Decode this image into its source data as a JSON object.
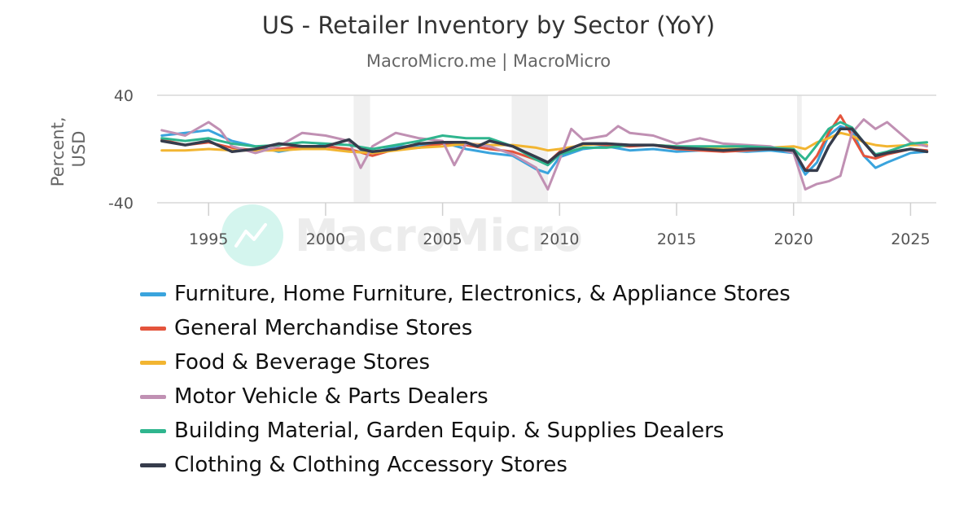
{
  "title": "US - Retailer Inventory by Sector (YoY)",
  "subtitle": "MacroMicro.me | MacroMicro",
  "watermark": "MacroMicro",
  "chart_data": {
    "type": "line",
    "title": "US - Retailer Inventory by Sector (YoY)",
    "ylabel": "Percent, USD",
    "ylim": [
      -40,
      40
    ],
    "yticks": [
      40,
      -40
    ],
    "xlim": [
      1992.8,
      2026.1
    ],
    "xticks": [
      1995,
      2000,
      2005,
      2010,
      2015,
      2020,
      2025
    ],
    "grid": "horizontal",
    "legend_position": "bottom",
    "recessions": [
      [
        2001.2,
        2001.9
      ],
      [
        2007.95,
        2009.5
      ],
      [
        2020.15,
        2020.35
      ]
    ],
    "series": [
      {
        "name": "Furniture, Home Furniture, Electronics, & Appliance Stores",
        "color": "#3aa4dd",
        "points": [
          [
            1993,
            10
          ],
          [
            1994,
            12
          ],
          [
            1995,
            14
          ],
          [
            1996,
            6
          ],
          [
            1997,
            2
          ],
          [
            1998,
            -2
          ],
          [
            1999,
            1
          ],
          [
            2000,
            3
          ],
          [
            2001,
            -1
          ],
          [
            2002,
            -3
          ],
          [
            2003,
            2
          ],
          [
            2004,
            2
          ],
          [
            2005,
            5
          ],
          [
            2006,
            0
          ],
          [
            2007,
            -3
          ],
          [
            2008,
            -5
          ],
          [
            2009,
            -15
          ],
          [
            2009.5,
            -18
          ],
          [
            2010,
            -6
          ],
          [
            2011,
            0
          ],
          [
            2012,
            2
          ],
          [
            2013,
            -1
          ],
          [
            2014,
            0
          ],
          [
            2015,
            -2
          ],
          [
            2016,
            -1
          ],
          [
            2017,
            -1
          ],
          [
            2018,
            -2
          ],
          [
            2019,
            -1
          ],
          [
            2020,
            -3
          ],
          [
            2020.5,
            -19
          ],
          [
            2021,
            -10
          ],
          [
            2021.5,
            10
          ],
          [
            2022,
            17
          ],
          [
            2022.5,
            14
          ],
          [
            2023,
            -5
          ],
          [
            2023.5,
            -14
          ],
          [
            2024,
            -10
          ],
          [
            2025,
            -3
          ],
          [
            2025.7,
            -2
          ]
        ]
      },
      {
        "name": "General Merchandise Stores",
        "color": "#e4543c",
        "points": [
          [
            1993,
            7
          ],
          [
            1994,
            3
          ],
          [
            1995,
            5
          ],
          [
            1996,
            1
          ],
          [
            1997,
            -1
          ],
          [
            1998,
            0
          ],
          [
            1999,
            2
          ],
          [
            2000,
            2
          ],
          [
            2001,
            0
          ],
          [
            2002,
            -5
          ],
          [
            2003,
            0
          ],
          [
            2004,
            1
          ],
          [
            2005,
            4
          ],
          [
            2006,
            3
          ],
          [
            2007,
            0
          ],
          [
            2008,
            -2
          ],
          [
            2009,
            -8
          ],
          [
            2009.5,
            -10
          ],
          [
            2010,
            -2
          ],
          [
            2011,
            4
          ],
          [
            2012,
            3
          ],
          [
            2013,
            2
          ],
          [
            2014,
            3
          ],
          [
            2015,
            0
          ],
          [
            2016,
            -1
          ],
          [
            2017,
            -2
          ],
          [
            2018,
            -1
          ],
          [
            2019,
            0
          ],
          [
            2020,
            -1
          ],
          [
            2020.5,
            -16
          ],
          [
            2021,
            -5
          ],
          [
            2021.5,
            12
          ],
          [
            2022,
            25
          ],
          [
            2022.5,
            10
          ],
          [
            2023,
            -5
          ],
          [
            2023.5,
            -7
          ],
          [
            2024,
            -4
          ],
          [
            2025,
            0
          ],
          [
            2025.7,
            -1
          ]
        ]
      },
      {
        "name": "Food & Beverage Stores",
        "color": "#f2b531",
        "points": [
          [
            1993,
            -1
          ],
          [
            1994,
            -1
          ],
          [
            1995,
            0
          ],
          [
            1996,
            -1
          ],
          [
            1997,
            -1
          ],
          [
            1998,
            -1
          ],
          [
            1999,
            0
          ],
          [
            2000,
            0
          ],
          [
            2001,
            -2
          ],
          [
            2002,
            -3
          ],
          [
            2003,
            -1
          ],
          [
            2004,
            1
          ],
          [
            2005,
            2
          ],
          [
            2006,
            4
          ],
          [
            2007,
            3
          ],
          [
            2008,
            3
          ],
          [
            2009,
            1
          ],
          [
            2009.5,
            -1
          ],
          [
            2010,
            0
          ],
          [
            2011,
            3
          ],
          [
            2012,
            4
          ],
          [
            2013,
            3
          ],
          [
            2014,
            3
          ],
          [
            2015,
            2
          ],
          [
            2016,
            1
          ],
          [
            2017,
            0
          ],
          [
            2018,
            0
          ],
          [
            2019,
            1
          ],
          [
            2020,
            2
          ],
          [
            2020.5,
            0
          ],
          [
            2021,
            5
          ],
          [
            2021.5,
            8
          ],
          [
            2022,
            12
          ],
          [
            2022.5,
            10
          ],
          [
            2023,
            5
          ],
          [
            2023.5,
            3
          ],
          [
            2024,
            2
          ],
          [
            2025,
            3
          ],
          [
            2025.7,
            3
          ]
        ]
      },
      {
        "name": "Motor Vehicle & Parts Dealers",
        "color": "#c090b3",
        "points": [
          [
            1993,
            14
          ],
          [
            1994,
            10
          ],
          [
            1995,
            20
          ],
          [
            1995.5,
            14
          ],
          [
            1996,
            2
          ],
          [
            1997,
            -3
          ],
          [
            1998,
            2
          ],
          [
            1999,
            12
          ],
          [
            2000,
            10
          ],
          [
            2001,
            6
          ],
          [
            2001.5,
            -14
          ],
          [
            2002,
            2
          ],
          [
            2003,
            12
          ],
          [
            2004,
            8
          ],
          [
            2005,
            6
          ],
          [
            2005.5,
            -12
          ],
          [
            2006,
            4
          ],
          [
            2007,
            2
          ],
          [
            2008,
            -4
          ],
          [
            2009,
            -14
          ],
          [
            2009.5,
            -30
          ],
          [
            2010,
            -8
          ],
          [
            2010.5,
            15
          ],
          [
            2011,
            7
          ],
          [
            2012,
            10
          ],
          [
            2012.5,
            17
          ],
          [
            2013,
            12
          ],
          [
            2014,
            10
          ],
          [
            2015,
            4
          ],
          [
            2016,
            8
          ],
          [
            2017,
            4
          ],
          [
            2018,
            3
          ],
          [
            2019,
            2
          ],
          [
            2020,
            -3
          ],
          [
            2020.5,
            -30
          ],
          [
            2021,
            -26
          ],
          [
            2021.5,
            -24
          ],
          [
            2022,
            -20
          ],
          [
            2022.5,
            12
          ],
          [
            2023,
            22
          ],
          [
            2023.5,
            15
          ],
          [
            2024,
            20
          ],
          [
            2025,
            5
          ],
          [
            2025.7,
            2
          ]
        ]
      },
      {
        "name": "Building Material, Garden Equip. & Supplies Dealers",
        "color": "#2fb58e",
        "points": [
          [
            1993,
            8
          ],
          [
            1994,
            6
          ],
          [
            1995,
            8
          ],
          [
            1996,
            4
          ],
          [
            1997,
            2
          ],
          [
            1998,
            3
          ],
          [
            1999,
            5
          ],
          [
            2000,
            4
          ],
          [
            2001,
            3
          ],
          [
            2002,
            0
          ],
          [
            2003,
            3
          ],
          [
            2004,
            6
          ],
          [
            2005,
            10
          ],
          [
            2006,
            8
          ],
          [
            2007,
            8
          ],
          [
            2008,
            2
          ],
          [
            2009,
            -8
          ],
          [
            2009.5,
            -12
          ],
          [
            2010,
            -4
          ],
          [
            2011,
            1
          ],
          [
            2012,
            1
          ],
          [
            2013,
            3
          ],
          [
            2014,
            3
          ],
          [
            2015,
            2
          ],
          [
            2016,
            2
          ],
          [
            2017,
            2
          ],
          [
            2018,
            2
          ],
          [
            2019,
            1
          ],
          [
            2020,
            0
          ],
          [
            2020.5,
            -8
          ],
          [
            2021,
            3
          ],
          [
            2021.5,
            15
          ],
          [
            2022,
            20
          ],
          [
            2022.5,
            16
          ],
          [
            2023,
            5
          ],
          [
            2023.5,
            -4
          ],
          [
            2024,
            -2
          ],
          [
            2025,
            4
          ],
          [
            2025.7,
            5
          ]
        ]
      },
      {
        "name": "Clothing & Clothing Accessory Stores",
        "color": "#363c4c",
        "points": [
          [
            1993,
            6
          ],
          [
            1994,
            3
          ],
          [
            1995,
            6
          ],
          [
            1996,
            -2
          ],
          [
            1997,
            0
          ],
          [
            1998,
            4
          ],
          [
            1999,
            2
          ],
          [
            2000,
            2
          ],
          [
            2001,
            7
          ],
          [
            2001.5,
            0
          ],
          [
            2002,
            -2
          ],
          [
            2003,
            0
          ],
          [
            2004,
            4
          ],
          [
            2005,
            5
          ],
          [
            2006,
            5
          ],
          [
            2006.5,
            2
          ],
          [
            2007,
            6
          ],
          [
            2008,
            2
          ],
          [
            2008.5,
            -2
          ],
          [
            2009,
            -6
          ],
          [
            2009.5,
            -10
          ],
          [
            2010,
            -3
          ],
          [
            2011,
            4
          ],
          [
            2012,
            4
          ],
          [
            2013,
            3
          ],
          [
            2014,
            3
          ],
          [
            2015,
            1
          ],
          [
            2016,
            0
          ],
          [
            2017,
            -1
          ],
          [
            2018,
            0
          ],
          [
            2019,
            0
          ],
          [
            2020,
            -1
          ],
          [
            2020.5,
            -16
          ],
          [
            2021,
            -16
          ],
          [
            2021.5,
            2
          ],
          [
            2022,
            15
          ],
          [
            2022.5,
            15
          ],
          [
            2023,
            5
          ],
          [
            2023.5,
            -5
          ],
          [
            2024,
            -3
          ],
          [
            2025,
            0
          ],
          [
            2025.7,
            -2
          ]
        ]
      }
    ]
  }
}
